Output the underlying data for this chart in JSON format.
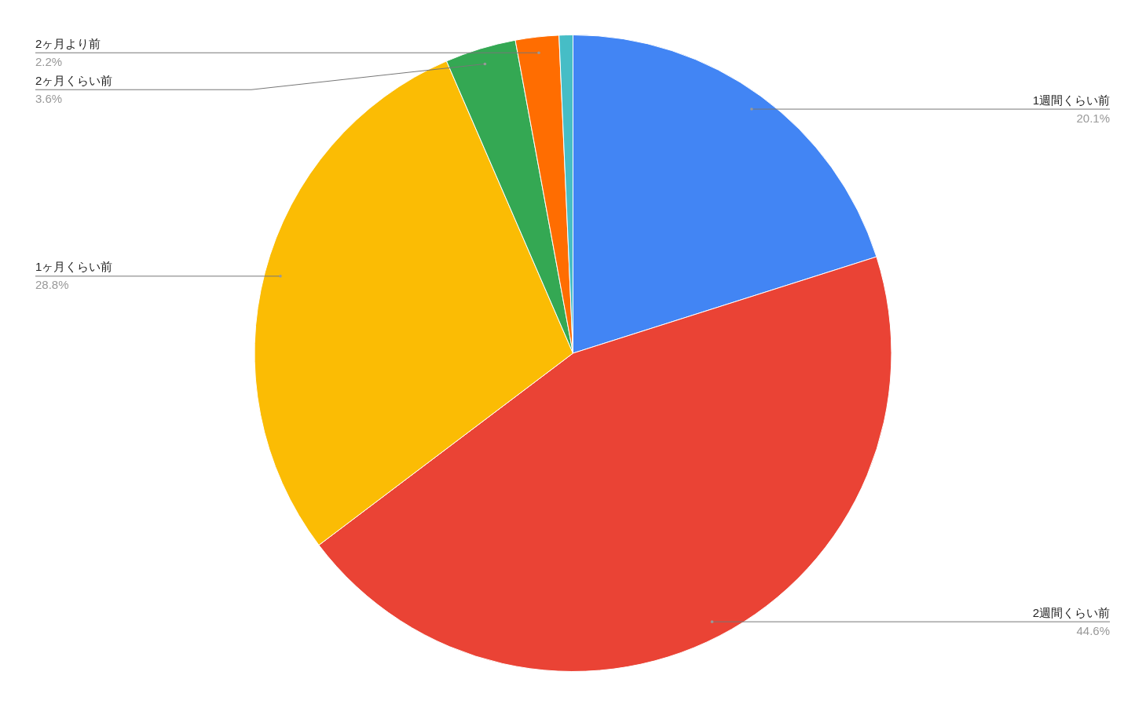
{
  "chart_data": {
    "type": "pie",
    "categories": [
      "1週間くらい前",
      "2週間くらい前",
      "1ヶ月くらい前",
      "2ヶ月くらい前",
      "2ヶ月より前",
      null
    ],
    "values": [
      20.1,
      44.6,
      28.8,
      3.6,
      2.2,
      0.7
    ],
    "colors": [
      "#4285f4",
      "#ea4335",
      "#fbbc04",
      "#34a853",
      "#ff6d01",
      "#46bdc6"
    ],
    "value_labels": [
      "20.1%",
      "44.6%",
      "28.8%",
      "3.6%",
      "2.2%",
      null
    ]
  }
}
